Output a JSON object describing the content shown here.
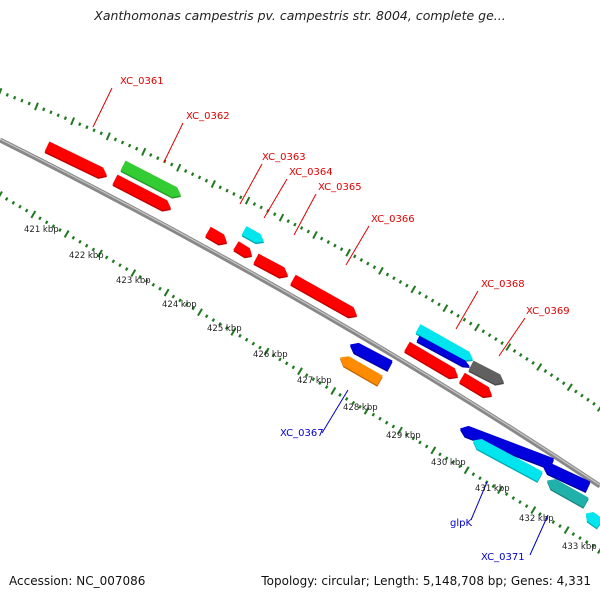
{
  "title": "Xanthomonas campestris pv. campestris str. 8004, complete ge...",
  "footer": {
    "accession": "Accession: NC_007086",
    "stats": "Topology: circular; Length: 5,148,708 bp; Genes: 4,331"
  },
  "colors": {
    "backbone": "#808080",
    "tick_dark": "#1f7a1f",
    "red": "#ff0000",
    "green": "#33cc33",
    "cyan": "#00e5ee",
    "blue": "#0000dd",
    "orange": "#ff8c00",
    "gray": "#606060",
    "teal": "#20b2aa",
    "label_red": "#e00000",
    "label_blue": "#0000cc"
  },
  "scale_labels": [
    "421 kbp",
    "422 kbp",
    "423 kbp",
    "424 kbp",
    "425 kbp",
    "426 kbp",
    "427 kbp",
    "428 kbp",
    "429 kbp",
    "430 kbp",
    "431 kbp",
    "432 kbp",
    "433 kbp"
  ],
  "genes": [
    {
      "id": "g1",
      "color": "red",
      "strand": "+"
    },
    {
      "id": "g2",
      "color": "green",
      "strand": "+"
    },
    {
      "id": "g3",
      "color": "red",
      "strand": "+"
    },
    {
      "id": "g4",
      "color": "red",
      "strand": "+"
    },
    {
      "id": "g5",
      "color": "cyan",
      "strand": "+"
    },
    {
      "id": "g6",
      "color": "red",
      "strand": "+"
    },
    {
      "id": "g7",
      "color": "red",
      "strand": "+"
    },
    {
      "id": "g8",
      "color": "red",
      "strand": "+"
    },
    {
      "id": "g9",
      "color": "cyan",
      "strand": "+"
    },
    {
      "id": "g10",
      "color": "blue",
      "strand": "+"
    },
    {
      "id": "g11",
      "color": "red",
      "strand": "+"
    },
    {
      "id": "g12",
      "color": "gray",
      "strand": "+"
    },
    {
      "id": "g13",
      "color": "red",
      "strand": "+"
    },
    {
      "id": "g14",
      "color": "blue",
      "strand": "-"
    },
    {
      "id": "g15",
      "color": "orange",
      "strand": "-"
    },
    {
      "id": "g16",
      "color": "blue",
      "strand": "-"
    },
    {
      "id": "g17",
      "color": "cyan",
      "strand": "-"
    },
    {
      "id": "g18",
      "color": "blue",
      "strand": "-"
    },
    {
      "id": "g19",
      "color": "teal",
      "strand": "-"
    },
    {
      "id": "g20",
      "color": "cyan",
      "strand": "-"
    }
  ],
  "gene_labels": [
    {
      "text": "XC_0361",
      "color": "label_red"
    },
    {
      "text": "XC_0362",
      "color": "label_red"
    },
    {
      "text": "XC_0363",
      "color": "label_red"
    },
    {
      "text": "XC_0364",
      "color": "label_red"
    },
    {
      "text": "XC_0365",
      "color": "label_red"
    },
    {
      "text": "XC_0366",
      "color": "label_red"
    },
    {
      "text": "XC_0368",
      "color": "label_red"
    },
    {
      "text": "XC_0369",
      "color": "label_red"
    },
    {
      "text": "XC_0367",
      "color": "label_blue"
    },
    {
      "text": "glpK",
      "color": "label_blue"
    },
    {
      "text": "XC_0371",
      "color": "label_blue"
    }
  ]
}
